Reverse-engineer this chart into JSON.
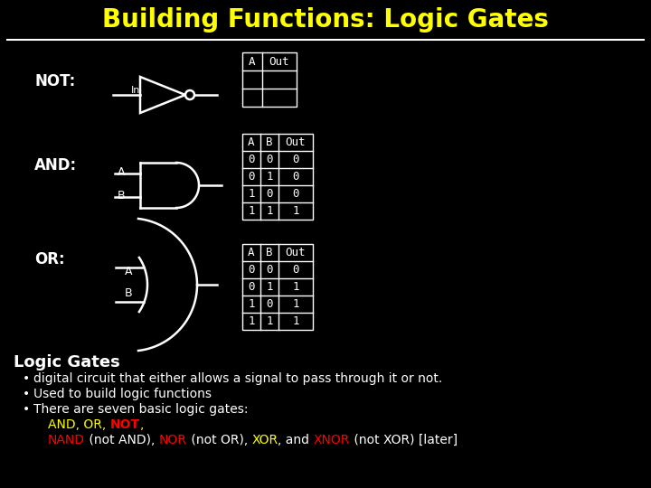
{
  "title": "Building Functions: Logic Gates",
  "title_color": "#ffff00",
  "bg_color": "#000000",
  "fg_color": "#ffffff",
  "title_fontsize": 20,
  "not_label": "NOT:",
  "and_label": "AND:",
  "or_label": "OR:",
  "not_in_label": "In",
  "and_a_label": "A",
  "and_b_label": "B",
  "or_a_label": "A",
  "or_b_label": "B",
  "not_table_headers": [
    "A",
    "Out"
  ],
  "not_table_rows": [
    [
      "",
      ""
    ],
    [
      "",
      ""
    ]
  ],
  "and_table_headers": [
    "A",
    "B",
    "Out"
  ],
  "and_table_rows": [
    [
      "0",
      "0",
      "0"
    ],
    [
      "0",
      "1",
      "0"
    ],
    [
      "1",
      "0",
      "0"
    ],
    [
      "1",
      "1",
      "1"
    ]
  ],
  "or_table_headers": [
    "A",
    "B",
    "Out"
  ],
  "or_table_rows": [
    [
      "0",
      "0",
      "0"
    ],
    [
      "0",
      "1",
      "1"
    ],
    [
      "1",
      "0",
      "1"
    ],
    [
      "1",
      "1",
      "1"
    ]
  ],
  "logic_gates_heading": "Logic Gates",
  "bullet1": "digital circuit that either allows a signal to pass through it or not.",
  "bullet2": "Used to build logic functions",
  "bullet3": "There are seven basic logic gates:",
  "line4_parts": [
    {
      "text": "AND, OR, ",
      "color": "#ffff00",
      "bold": false
    },
    {
      "text": "NOT",
      "color": "#ff0000",
      "bold": true
    },
    {
      "text": ",",
      "color": "#ffff00",
      "bold": false
    }
  ],
  "line5_parts": [
    {
      "text": "NAND",
      "color": "#ff0000",
      "bold": false
    },
    {
      "text": " (not AND), ",
      "color": "#ffffff",
      "bold": false
    },
    {
      "text": "NOR",
      "color": "#ff0000",
      "bold": false
    },
    {
      "text": " (not OR), ",
      "color": "#ffffff",
      "bold": false
    },
    {
      "text": "XOR",
      "color": "#ffff00",
      "bold": false
    },
    {
      "text": ", and ",
      "color": "#ffffff",
      "bold": false
    },
    {
      "text": "XNOR",
      "color": "#ff0000",
      "bold": false
    },
    {
      "text": " (not XOR) [later]",
      "color": "#ffffff",
      "bold": false
    }
  ]
}
